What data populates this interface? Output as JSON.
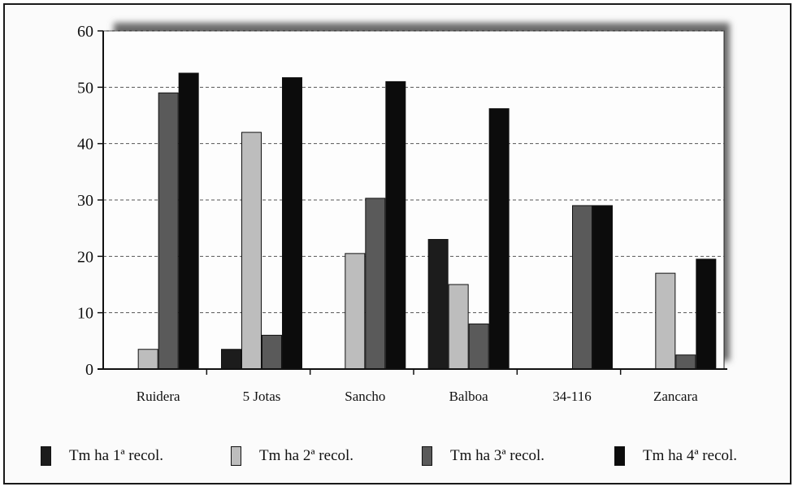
{
  "chart_data": {
    "type": "bar",
    "categories": [
      "Ruidera",
      "5 Jotas",
      "Sancho",
      "Balboa",
      "34-116",
      "Zancara"
    ],
    "series": [
      {
        "name": "Tm ha 1ª recol.",
        "color": "#1c1c1c",
        "values": [
          0,
          3.5,
          0,
          23,
          0,
          0
        ]
      },
      {
        "name": "Tm ha 2ª recol.",
        "color": "#bdbdbd",
        "values": [
          3.5,
          42,
          20.5,
          15,
          0,
          17
        ]
      },
      {
        "name": "Tm ha 3ª recol.",
        "color": "#5a5a5a",
        "values": [
          49,
          6,
          30.3,
          8,
          29,
          2.5
        ]
      },
      {
        "name": "Tm ha 4ª recol.",
        "color": "#0c0c0c",
        "values": [
          52.5,
          51.7,
          51,
          46.2,
          29,
          19.5
        ]
      }
    ],
    "yticks": [
      "0",
      "10",
      "20",
      "30",
      "40",
      "50",
      "60"
    ],
    "ylim": [
      0,
      60
    ],
    "grid": "dashed-horizontal",
    "legend": "bottom"
  }
}
